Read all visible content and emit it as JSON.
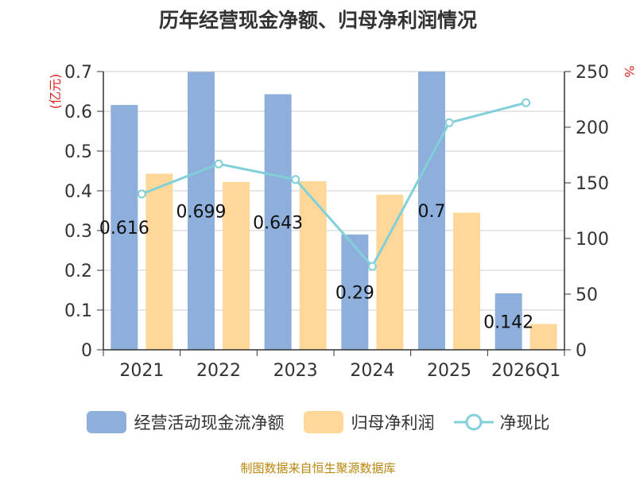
{
  "title": "历年经营现金净额、归母净利润情况",
  "source": "制图数据来自恒生聚源数据库",
  "chart_data": {
    "type": "bar",
    "categories": [
      "2021",
      "2022",
      "2023",
      "2024",
      "2025",
      "2026Q1"
    ],
    "series": [
      {
        "name": "经营活动现金流净额",
        "type": "bar",
        "axis": "left",
        "color": "#8eaedb",
        "values": [
          0.616,
          0.699,
          0.643,
          0.29,
          0.7,
          0.142
        ],
        "labels": [
          "0.616",
          "0.699",
          "0.643",
          "0.29",
          "0.7",
          "0.142"
        ]
      },
      {
        "name": "归母净利润",
        "type": "bar",
        "axis": "left",
        "color": "#ffd899",
        "values": [
          0.443,
          0.422,
          0.424,
          0.39,
          0.345,
          0.065
        ]
      },
      {
        "name": "净现比",
        "type": "line",
        "axis": "right",
        "color": "#80cfd9",
        "values": [
          140,
          167,
          153,
          75,
          204,
          222
        ]
      }
    ],
    "ylabel_left": "(亿元)",
    "ylabel_right": "%",
    "ylim_left": [
      0,
      0.7
    ],
    "yticks_left": [
      "0",
      "0.1",
      "0.2",
      "0.3",
      "0.4",
      "0.5",
      "0.6",
      "0.7"
    ],
    "ylim_right": [
      0,
      250
    ],
    "yticks_right": [
      "0",
      "50",
      "100",
      "150",
      "200",
      "250"
    ],
    "grid": true,
    "legend_position": "bottom"
  }
}
